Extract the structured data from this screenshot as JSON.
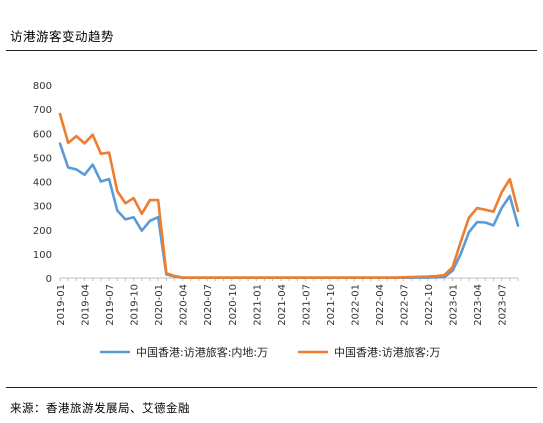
{
  "figure": {
    "title": "访港游客变动趋势",
    "source": "来源：香港旅游发展局、艾德金融"
  },
  "chart_data": {
    "type": "line",
    "title": "",
    "xlabel": "",
    "ylabel": "",
    "ylim": [
      0,
      800
    ],
    "yticks": [
      0,
      100,
      200,
      300,
      400,
      500,
      600,
      700,
      800
    ],
    "grid": false,
    "legend_placement": "bottom",
    "x": [
      "2019-01",
      "2019-02",
      "2019-03",
      "2019-04",
      "2019-05",
      "2019-06",
      "2019-07",
      "2019-08",
      "2019-09",
      "2019-10",
      "2019-11",
      "2019-12",
      "2020-01",
      "2020-02",
      "2020-03",
      "2020-04",
      "2020-05",
      "2020-06",
      "2020-07",
      "2020-08",
      "2020-09",
      "2020-10",
      "2020-11",
      "2020-12",
      "2021-01",
      "2021-02",
      "2021-03",
      "2021-04",
      "2021-05",
      "2021-06",
      "2021-07",
      "2021-08",
      "2021-09",
      "2021-10",
      "2021-11",
      "2021-12",
      "2022-01",
      "2022-02",
      "2022-03",
      "2022-04",
      "2022-05",
      "2022-06",
      "2022-07",
      "2022-08",
      "2022-09",
      "2022-10",
      "2022-11",
      "2022-12",
      "2023-01",
      "2023-02",
      "2023-03",
      "2023-04",
      "2023-05",
      "2023-06",
      "2023-07",
      "2023-08",
      "2023-09"
    ],
    "xtick_labels": [
      "2019-01",
      "2019-04",
      "2019-07",
      "2019-10",
      "2020-01",
      "2020-04",
      "2020-07",
      "2020-10",
      "2021-01",
      "2021-04",
      "2021-07",
      "2021-10",
      "2022-01",
      "2022-04",
      "2022-07",
      "2022-10",
      "2023-01",
      "2023-04",
      "2023-07"
    ],
    "series": [
      {
        "name": "中国香港:访港旅客:内地:万",
        "color": "#5B9BD5",
        "values": [
          557,
          458,
          450,
          428,
          470,
          400,
          410,
          280,
          243,
          252,
          196,
          237,
          252,
          15,
          6,
          1,
          1,
          1,
          1,
          1,
          1,
          1,
          1,
          1,
          1,
          1,
          1,
          1,
          1,
          1,
          1,
          1,
          1,
          1,
          1,
          1,
          1,
          1,
          1,
          1,
          1,
          1,
          1,
          1,
          2,
          2,
          3,
          4,
          30,
          100,
          190,
          232,
          230,
          218,
          290,
          340,
          217
        ]
      },
      {
        "name": "中国香港:访港旅客:万",
        "color": "#ED7D31",
        "values": [
          680,
          560,
          588,
          558,
          594,
          515,
          520,
          360,
          310,
          331,
          266,
          323,
          323,
          20,
          8,
          2,
          2,
          2,
          2,
          2,
          2,
          2,
          2,
          2,
          2,
          2,
          2,
          2,
          2,
          2,
          2,
          2,
          2,
          2,
          2,
          2,
          2,
          2,
          2,
          2,
          2,
          2,
          3,
          4,
          5,
          6,
          8,
          12,
          45,
          150,
          250,
          290,
          283,
          275,
          355,
          410,
          278
        ]
      }
    ]
  }
}
